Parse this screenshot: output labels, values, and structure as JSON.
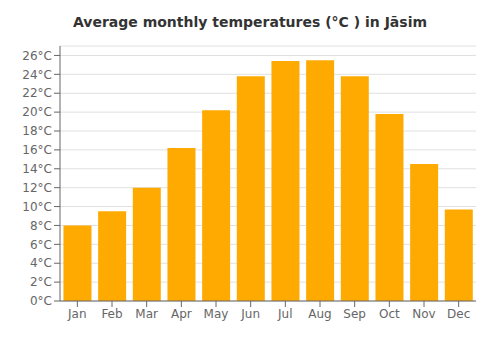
{
  "chart_data": {
    "type": "bar",
    "title": "Average monthly temperatures (°C ) in Jāsim",
    "categories": [
      "Jan",
      "Feb",
      "Mar",
      "Apr",
      "May",
      "Jun",
      "Jul",
      "Aug",
      "Sep",
      "Oct",
      "Nov",
      "Dec"
    ],
    "values": [
      8.0,
      9.5,
      12.0,
      16.2,
      20.2,
      23.8,
      25.4,
      25.5,
      23.8,
      19.8,
      14.5,
      9.7
    ],
    "color": "#FFAA00",
    "ylim": [
      0,
      27
    ],
    "yticks": [
      {
        "value": 0,
        "label": "0°C"
      },
      {
        "value": 2,
        "label": "2°C"
      },
      {
        "value": 4,
        "label": "4°C"
      },
      {
        "value": 6,
        "label": "6°C"
      },
      {
        "value": 8,
        "label": "8°C"
      },
      {
        "value": 10,
        "label": "10°C"
      },
      {
        "value": 12,
        "label": "12°C"
      },
      {
        "value": 14,
        "label": "14°C"
      },
      {
        "value": 16,
        "label": "16°C"
      },
      {
        "value": 18,
        "label": "18°C"
      },
      {
        "value": 20,
        "label": "20°C"
      },
      {
        "value": 22,
        "label": "22°C"
      },
      {
        "value": 24,
        "label": "24°C"
      },
      {
        "value": 26,
        "label": "26°C"
      }
    ],
    "grid": true
  }
}
